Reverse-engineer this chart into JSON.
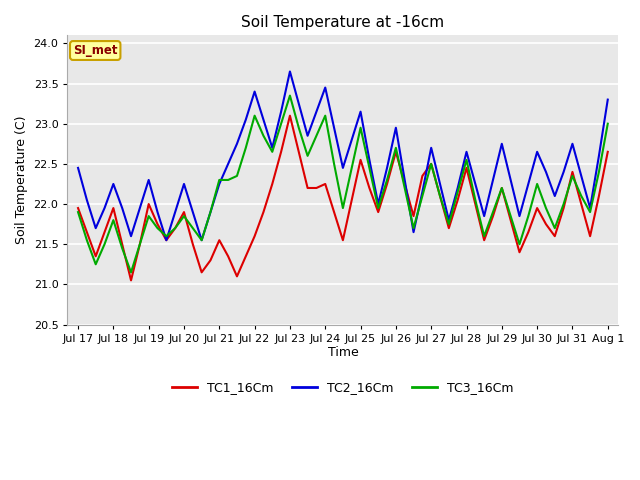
{
  "title": "Soil Temperature at -16cm",
  "xlabel": "Time",
  "ylabel": "Soil Temperature (C)",
  "ylim": [
    20.5,
    24.1
  ],
  "x_tick_labels": [
    "Jul 17",
    "Jul 18",
    "Jul 19",
    "Jul 20",
    "Jul 21",
    "Jul 22",
    "Jul 23",
    "Jul 24",
    "Jul 25",
    "Jul 26",
    "Jul 27",
    "Jul 28",
    "Jul 29",
    "Jul 30",
    "Jul 31",
    "Aug 1"
  ],
  "fig_bg_color": "#ffffff",
  "plot_bg_color": "#e8e8e8",
  "grid_color": "#ffffff",
  "annotation_text": "SI_met",
  "annotation_bg": "#ffffa0",
  "annotation_border": "#c8a000",
  "annotation_text_color": "#880000",
  "line_colors": {
    "TC1_16Cm": "#dd0000",
    "TC2_16Cm": "#0000dd",
    "TC3_16Cm": "#00aa00"
  },
  "line_width": 1.5,
  "legend_labels": [
    "TC1_16Cm",
    "TC2_16Cm",
    "TC3_16Cm"
  ],
  "TC1_x": [
    0,
    0.25,
    0.5,
    0.75,
    1.0,
    1.25,
    1.5,
    1.75,
    2.0,
    2.25,
    2.5,
    2.75,
    3.0,
    3.25,
    3.5,
    3.75,
    4.0,
    4.25,
    4.5,
    4.75,
    5.0,
    5.25,
    5.5,
    5.75,
    6.0,
    6.25,
    6.5,
    6.75,
    7.0,
    7.25,
    7.5,
    7.75,
    8.0,
    8.25,
    8.5,
    8.75,
    9.0,
    9.25,
    9.5,
    9.75,
    10.0,
    10.25,
    10.5,
    10.75,
    11.0,
    11.25,
    11.5,
    11.75,
    12.0,
    12.25,
    12.5,
    12.75,
    13.0,
    13.25,
    13.5,
    13.75,
    14.0,
    14.25,
    14.5,
    14.75,
    15.0
  ],
  "TC1_y": [
    21.95,
    21.65,
    21.35,
    21.65,
    21.95,
    21.5,
    21.05,
    21.5,
    22.0,
    21.75,
    21.55,
    21.7,
    21.9,
    21.5,
    21.15,
    21.3,
    21.55,
    21.35,
    21.1,
    21.35,
    21.6,
    21.9,
    22.25,
    22.65,
    23.1,
    22.65,
    22.2,
    22.2,
    22.25,
    21.9,
    21.55,
    22.05,
    22.55,
    22.2,
    21.9,
    22.25,
    22.65,
    22.25,
    21.85,
    22.35,
    22.5,
    22.1,
    21.7,
    22.05,
    22.45,
    22.0,
    21.55,
    21.85,
    22.2,
    21.8,
    21.4,
    21.65,
    21.95,
    21.75,
    21.6,
    21.95,
    22.4,
    22.0,
    21.6,
    22.1,
    22.65
  ],
  "TC2_x": [
    0,
    0.25,
    0.5,
    0.75,
    1.0,
    1.25,
    1.5,
    1.75,
    2.0,
    2.25,
    2.5,
    2.75,
    3.0,
    3.25,
    3.5,
    3.75,
    4.0,
    4.25,
    4.5,
    4.75,
    5.0,
    5.25,
    5.5,
    5.75,
    6.0,
    6.25,
    6.5,
    6.75,
    7.0,
    7.25,
    7.5,
    7.75,
    8.0,
    8.25,
    8.5,
    8.75,
    9.0,
    9.25,
    9.5,
    9.75,
    10.0,
    10.25,
    10.5,
    10.75,
    11.0,
    11.25,
    11.5,
    11.75,
    12.0,
    12.25,
    12.5,
    12.75,
    13.0,
    13.25,
    13.5,
    13.75,
    14.0,
    14.25,
    14.5,
    14.75,
    15.0
  ],
  "TC2_y": [
    22.45,
    22.05,
    21.7,
    21.95,
    22.25,
    21.95,
    21.6,
    21.95,
    22.3,
    21.9,
    21.55,
    21.9,
    22.25,
    21.9,
    21.55,
    21.9,
    22.25,
    22.5,
    22.75,
    23.05,
    23.4,
    23.05,
    22.7,
    23.15,
    23.65,
    23.25,
    22.85,
    23.15,
    23.45,
    22.95,
    22.45,
    22.8,
    23.15,
    22.55,
    22.0,
    22.45,
    22.95,
    22.3,
    21.65,
    22.15,
    22.7,
    22.25,
    21.8,
    22.2,
    22.65,
    22.25,
    21.85,
    22.3,
    22.75,
    22.3,
    21.85,
    22.25,
    22.65,
    22.4,
    22.1,
    22.4,
    22.75,
    22.35,
    21.95,
    22.6,
    23.3
  ],
  "TC3_x": [
    0,
    0.25,
    0.5,
    0.75,
    1.0,
    1.25,
    1.5,
    1.75,
    2.0,
    2.25,
    2.5,
    2.75,
    3.0,
    3.25,
    3.5,
    3.75,
    4.0,
    4.25,
    4.5,
    4.75,
    5.0,
    5.25,
    5.5,
    5.75,
    6.0,
    6.25,
    6.5,
    6.75,
    7.0,
    7.25,
    7.5,
    7.75,
    8.0,
    8.25,
    8.5,
    8.75,
    9.0,
    9.25,
    9.5,
    9.75,
    10.0,
    10.25,
    10.5,
    10.75,
    11.0,
    11.25,
    11.5,
    11.75,
    12.0,
    12.25,
    12.5,
    12.75,
    13.0,
    13.25,
    13.5,
    13.75,
    14.0,
    14.25,
    14.5,
    14.75,
    15.0
  ],
  "TC3_y": [
    21.9,
    21.55,
    21.25,
    21.5,
    21.8,
    21.45,
    21.15,
    21.5,
    21.85,
    21.7,
    21.6,
    21.7,
    21.85,
    21.7,
    21.55,
    21.9,
    22.3,
    22.3,
    22.35,
    22.7,
    23.1,
    22.85,
    22.65,
    23.0,
    23.35,
    22.95,
    22.6,
    22.85,
    23.1,
    22.5,
    21.95,
    22.45,
    22.95,
    22.45,
    21.95,
    22.3,
    22.7,
    22.2,
    21.7,
    22.1,
    22.5,
    22.1,
    21.75,
    22.15,
    22.55,
    22.05,
    21.6,
    21.9,
    22.2,
    21.85,
    21.5,
    21.85,
    22.25,
    21.95,
    21.7,
    22.0,
    22.35,
    22.1,
    21.9,
    22.4,
    23.0
  ]
}
